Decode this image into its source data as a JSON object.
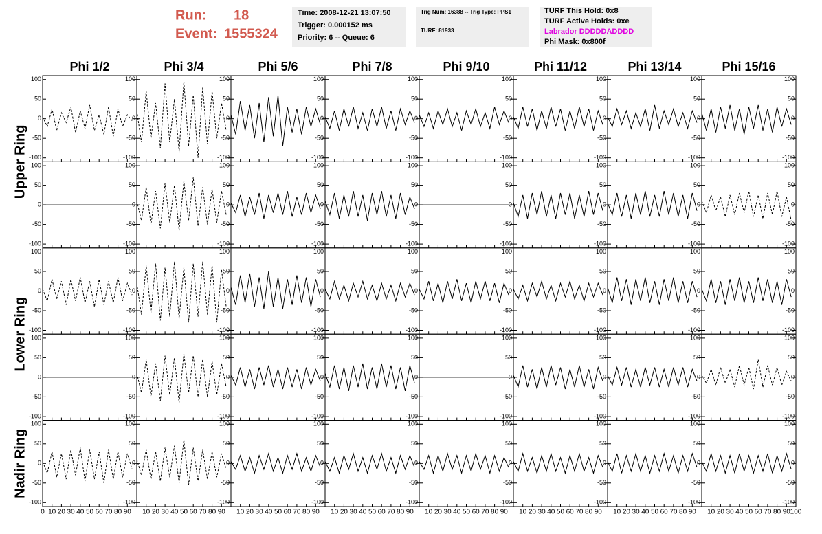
{
  "header": {
    "run_label": "Run:",
    "run": "18",
    "event_label": "Event:",
    "event": "1555324",
    "box1": [
      "Time: 2008-12-21 13:07:50",
      "Trigger: 0.000152 ms",
      "Priority: 6 -- Queue: 6"
    ],
    "box2": [
      "Trig Num: 16388 -- Trig Type: PPS1",
      "TURF: 81933"
    ],
    "box3": [
      "TURF This Hold: 0x8",
      "TURF Active Holds: 0xe",
      "Labrador DDDDDADDDD",
      "Phi Mask: 0x800f"
    ]
  },
  "columns": [
    "Phi 1/2",
    "Phi 3/4",
    "Phi 5/6",
    "Phi 7/8",
    "Phi 9/10",
    "Phi 11/12",
    "Phi 13/14",
    "Phi 15/16"
  ],
  "rows": [
    "Upper Ring",
    "Lower Ring",
    "Nadir Ring"
  ],
  "axes": {
    "x": [
      0,
      5,
      10,
      15,
      20,
      25,
      30,
      35,
      40,
      45,
      50,
      55,
      60,
      65,
      70,
      75,
      80,
      85,
      90,
      95
    ],
    "xlim": [
      0,
      100
    ],
    "xticks": [
      0,
      10,
      20,
      30,
      40,
      50,
      60,
      70,
      80,
      90,
      100
    ],
    "ylim": [
      -110,
      110
    ],
    "yticks": [
      -100,
      -50,
      0,
      50,
      100
    ]
  },
  "chart_data": [
    {
      "type": "line",
      "style": "dashed",
      "values": [
        5,
        -20,
        25,
        -30,
        15,
        -10,
        30,
        -35,
        20,
        -25,
        35,
        -30,
        10,
        -40,
        30,
        -45,
        25,
        -20,
        10,
        -5
      ]
    },
    {
      "type": "line",
      "style": "dashed",
      "values": [
        20,
        -60,
        70,
        -50,
        40,
        -75,
        90,
        -60,
        50,
        -85,
        95,
        -70,
        60,
        -100,
        80,
        -65,
        70,
        -50,
        40,
        -30
      ]
    },
    {
      "type": "line",
      "style": "solid",
      "values": [
        10,
        -40,
        45,
        -30,
        35,
        -50,
        40,
        -60,
        55,
        -45,
        60,
        -70,
        30,
        -35,
        25,
        -40,
        30,
        -20,
        25,
        -15
      ]
    },
    {
      "type": "line",
      "style": "solid",
      "values": [
        5,
        -25,
        20,
        -30,
        25,
        -20,
        30,
        -25,
        15,
        -30,
        25,
        -20,
        30,
        -25,
        20,
        -30,
        25,
        -15,
        20,
        -10
      ]
    },
    {
      "type": "line",
      "style": "solid",
      "values": [
        10,
        -20,
        15,
        -25,
        20,
        -15,
        25,
        -20,
        15,
        -30,
        20,
        -15,
        25,
        -20,
        15,
        -25,
        30,
        -15,
        20,
        -10
      ]
    },
    {
      "type": "line",
      "style": "solid",
      "values": [
        5,
        -25,
        30,
        -20,
        25,
        -30,
        20,
        -25,
        30,
        -20,
        25,
        -30,
        20,
        -25,
        30,
        -20,
        25,
        -30,
        20,
        -15
      ]
    },
    {
      "type": "line",
      "style": "solid",
      "values": [
        5,
        -20,
        25,
        -15,
        20,
        -25,
        15,
        -20,
        25,
        -30,
        35,
        -25,
        20,
        -15,
        25,
        -20,
        15,
        -25,
        20,
        -10
      ]
    },
    {
      "type": "line",
      "style": "solid",
      "values": [
        15,
        -30,
        25,
        -35,
        30,
        -25,
        35,
        -30,
        25,
        -40,
        30,
        -25,
        35,
        -30,
        25,
        -35,
        30,
        -20,
        25,
        -15
      ]
    },
    {
      "type": "line",
      "style": "solid",
      "values": [
        0,
        0,
        0,
        0,
        0,
        0,
        0,
        0,
        0,
        0,
        0,
        0,
        0,
        0,
        0,
        0,
        0,
        0,
        0,
        0
      ]
    },
    {
      "type": "line",
      "style": "dashed",
      "values": [
        10,
        -40,
        45,
        -50,
        35,
        -60,
        55,
        -45,
        50,
        -65,
        60,
        -40,
        70,
        -55,
        45,
        -50,
        40,
        -45,
        35,
        -25
      ]
    },
    {
      "type": "line",
      "style": "solid",
      "values": [
        5,
        -20,
        25,
        -30,
        20,
        -25,
        30,
        -35,
        25,
        -20,
        30,
        -25,
        35,
        -30,
        20,
        -25,
        30,
        -20,
        25,
        -10
      ]
    },
    {
      "type": "line",
      "style": "solid",
      "values": [
        10,
        -25,
        30,
        -35,
        25,
        -30,
        35,
        -30,
        25,
        -40,
        30,
        -25,
        35,
        -30,
        25,
        -35,
        30,
        -25,
        20,
        -10
      ]
    },
    {
      "type": "line",
      "style": "solid",
      "values": [
        0,
        0,
        0,
        0,
        0,
        0,
        0,
        0,
        0,
        0,
        0,
        0,
        0,
        0,
        0,
        0,
        0,
        0,
        0,
        0
      ]
    },
    {
      "type": "line",
      "style": "solid",
      "values": [
        5,
        -30,
        25,
        -35,
        30,
        -25,
        35,
        -30,
        25,
        -35,
        30,
        -25,
        30,
        -35,
        25,
        -30,
        35,
        -25,
        30,
        -15
      ]
    },
    {
      "type": "line",
      "style": "solid",
      "values": [
        5,
        -25,
        30,
        -30,
        25,
        -35,
        30,
        -25,
        35,
        -30,
        25,
        -30,
        35,
        -25,
        30,
        -30,
        25,
        -35,
        30,
        -15
      ]
    },
    {
      "type": "line",
      "style": "dashed",
      "values": [
        10,
        -20,
        25,
        -15,
        20,
        -30,
        25,
        -25,
        30,
        -20,
        35,
        -30,
        25,
        -35,
        30,
        -25,
        35,
        -30,
        20,
        -40
      ]
    },
    {
      "type": "line",
      "style": "dashed",
      "values": [
        5,
        -25,
        30,
        -20,
        25,
        -35,
        30,
        -25,
        35,
        -30,
        25,
        -40,
        30,
        -35,
        25,
        -30,
        35,
        -25,
        20,
        -10
      ]
    },
    {
      "type": "line",
      "style": "dashed",
      "values": [
        20,
        -60,
        65,
        -55,
        70,
        -75,
        60,
        -65,
        75,
        -70,
        60,
        -80,
        70,
        -65,
        75,
        -60,
        65,
        -80,
        55,
        -40
      ]
    },
    {
      "type": "line",
      "style": "solid",
      "values": [
        10,
        -35,
        40,
        -30,
        45,
        -40,
        35,
        -45,
        50,
        -40,
        35,
        -45,
        30,
        -35,
        40,
        -30,
        35,
        -40,
        30,
        -15
      ]
    },
    {
      "type": "line",
      "style": "solid",
      "values": [
        5,
        -20,
        25,
        -20,
        15,
        -25,
        20,
        -15,
        25,
        -20,
        15,
        -25,
        20,
        -20,
        15,
        -25,
        20,
        -15,
        20,
        -10
      ]
    },
    {
      "type": "line",
      "style": "solid",
      "values": [
        5,
        -20,
        25,
        -25,
        20,
        -30,
        25,
        -20,
        30,
        -25,
        20,
        -30,
        25,
        -20,
        25,
        -25,
        20,
        -30,
        20,
        -10
      ]
    },
    {
      "type": "line",
      "style": "solid",
      "values": [
        5,
        -20,
        15,
        -25,
        20,
        -15,
        25,
        -20,
        15,
        -25,
        20,
        -15,
        25,
        -20,
        15,
        -25,
        20,
        -15,
        20,
        -10
      ]
    },
    {
      "type": "line",
      "style": "solid",
      "values": [
        10,
        -30,
        35,
        -25,
        30,
        -35,
        30,
        -25,
        35,
        -30,
        25,
        -35,
        30,
        -25,
        35,
        -30,
        25,
        -30,
        25,
        -15
      ]
    },
    {
      "type": "line",
      "style": "solid",
      "values": [
        5,
        -25,
        30,
        -30,
        25,
        -35,
        30,
        -25,
        35,
        -30,
        25,
        -30,
        35,
        -25,
        30,
        -30,
        25,
        -35,
        30,
        -15
      ]
    },
    {
      "type": "line",
      "style": "solid",
      "values": [
        0,
        0,
        0,
        0,
        0,
        0,
        0,
        0,
        0,
        0,
        0,
        0,
        0,
        0,
        0,
        0,
        0,
        0,
        0,
        0
      ]
    },
    {
      "type": "line",
      "style": "dashed",
      "values": [
        10,
        -40,
        45,
        -50,
        35,
        -60,
        55,
        -45,
        50,
        -65,
        60,
        -40,
        55,
        -50,
        45,
        -50,
        40,
        -45,
        35,
        -25
      ]
    },
    {
      "type": "line",
      "style": "solid",
      "values": [
        5,
        -20,
        25,
        -25,
        20,
        -30,
        25,
        -20,
        30,
        -25,
        20,
        -30,
        25,
        -25,
        20,
        -30,
        25,
        -20,
        20,
        -10
      ]
    },
    {
      "type": "line",
      "style": "solid",
      "values": [
        10,
        -25,
        30,
        -30,
        25,
        -35,
        30,
        -25,
        35,
        -30,
        25,
        -30,
        35,
        -25,
        30,
        -30,
        25,
        -35,
        30,
        -15
      ]
    },
    {
      "type": "line",
      "style": "solid",
      "values": [
        0,
        0,
        0,
        0,
        0,
        0,
        0,
        0,
        0,
        0,
        0,
        0,
        0,
        0,
        0,
        0,
        0,
        0,
        0,
        0
      ]
    },
    {
      "type": "line",
      "style": "solid",
      "values": [
        5,
        -25,
        30,
        -25,
        20,
        -30,
        25,
        -25,
        30,
        -20,
        25,
        -30,
        20,
        -25,
        30,
        -25,
        20,
        -30,
        25,
        -10
      ]
    },
    {
      "type": "line",
      "style": "solid",
      "values": [
        5,
        -20,
        25,
        -20,
        25,
        -25,
        20,
        -25,
        25,
        -20,
        25,
        -25,
        20,
        -25,
        25,
        -20,
        25,
        -25,
        20,
        -10
      ]
    },
    {
      "type": "line",
      "style": "dashed",
      "values": [
        5,
        -15,
        20,
        -20,
        25,
        -15,
        20,
        -25,
        30,
        -20,
        25,
        -30,
        45,
        -25,
        30,
        -20,
        25,
        -20,
        15,
        -10
      ]
    },
    {
      "type": "line",
      "style": "dashed",
      "values": [
        5,
        -25,
        30,
        -35,
        25,
        -40,
        35,
        -30,
        40,
        -45,
        35,
        -40,
        30,
        -50,
        35,
        -40,
        30,
        -35,
        25,
        -15
      ]
    },
    {
      "type": "line",
      "style": "dashed",
      "values": [
        10,
        -30,
        35,
        -40,
        30,
        -45,
        40,
        -35,
        45,
        -50,
        60,
        -55,
        40,
        -45,
        35,
        -40,
        30,
        -35,
        25,
        -15
      ]
    },
    {
      "type": "line",
      "style": "solid",
      "values": [
        5,
        -15,
        20,
        -20,
        15,
        -25,
        20,
        -15,
        25,
        -20,
        15,
        -25,
        20,
        -15,
        25,
        -20,
        15,
        -20,
        20,
        -10
      ]
    },
    {
      "type": "line",
      "style": "solid",
      "values": [
        5,
        -20,
        15,
        -25,
        20,
        -15,
        25,
        -20,
        15,
        -25,
        20,
        -15,
        25,
        -20,
        15,
        -25,
        20,
        -15,
        20,
        -10
      ]
    },
    {
      "type": "line",
      "style": "solid",
      "values": [
        5,
        -15,
        20,
        -25,
        20,
        -20,
        25,
        -15,
        20,
        -25,
        20,
        -20,
        25,
        -15,
        20,
        -25,
        20,
        -20,
        15,
        -10
      ]
    },
    {
      "type": "line",
      "style": "solid",
      "values": [
        5,
        -20,
        25,
        -20,
        15,
        -25,
        20,
        -20,
        25,
        -20,
        15,
        -25,
        20,
        -20,
        25,
        -20,
        15,
        -25,
        20,
        -10
      ]
    },
    {
      "type": "line",
      "style": "solid",
      "values": [
        5,
        -20,
        25,
        -25,
        20,
        -20,
        25,
        -20,
        20,
        -25,
        20,
        -20,
        25,
        -20,
        20,
        -25,
        20,
        -20,
        25,
        -10
      ]
    },
    {
      "type": "line",
      "style": "solid",
      "values": [
        5,
        -20,
        25,
        -20,
        20,
        -25,
        20,
        -25,
        25,
        -20,
        20,
        -25,
        20,
        -20,
        25,
        -25,
        20,
        -20,
        25,
        -15
      ]
    }
  ]
}
